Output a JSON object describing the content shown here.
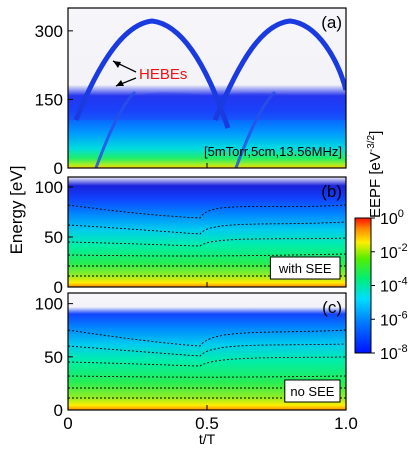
{
  "figure": {
    "ylabel": "Energy [eV]",
    "xlabel": "t/T",
    "colorbar_label": "EEPF [eV",
    "colorbar_label_exp": "-3/2",
    "colorbar_label_end": "]",
    "colorbar_ticks": [
      {
        "base": "10",
        "exp": "0"
      },
      {
        "base": "10",
        "exp": "-2"
      },
      {
        "base": "10",
        "exp": "-4"
      },
      {
        "base": "10",
        "exp": "-6"
      },
      {
        "base": "10",
        "exp": "-8"
      }
    ]
  },
  "chart_data": [
    {
      "panel": "(a)",
      "type": "heatmap",
      "x": {
        "label": "t/T",
        "range": [
          0,
          1
        ],
        "ticks": [
          "0",
          "0.5",
          "1.0"
        ]
      },
      "y": {
        "label": "Energy [eV]",
        "range": [
          0,
          350
        ],
        "ticks": [
          "0",
          "150",
          "300"
        ]
      },
      "colorscale": {
        "type": "log",
        "range": [
          1e-08,
          1
        ],
        "colors": [
          "#0022ff",
          "#00ccff",
          "#22ee55",
          "#ffee00",
          "#ff2200"
        ]
      },
      "annotations": [
        {
          "text": "HEBEs",
          "color": "#ee1111"
        }
      ],
      "condition_label": "[5mTorr,5cm,13.56MHz]",
      "beam_peaks": [
        {
          "t": 0.3,
          "energy": 328
        },
        {
          "t": 0.8,
          "energy": 328
        }
      ]
    },
    {
      "panel": "(b)",
      "type": "heatmap",
      "x": {
        "label": "t/T",
        "range": [
          0,
          1
        ],
        "ticks": [
          "0",
          "0.5",
          "1.0"
        ]
      },
      "y": {
        "label": "Energy [eV]",
        "range": [
          0,
          110
        ],
        "ticks": [
          "0",
          "50",
          "100"
        ]
      },
      "colorscale": {
        "type": "log",
        "range": [
          1e-08,
          1
        ]
      },
      "contour_lines": "dashed black",
      "legend_box": "with SEE"
    },
    {
      "panel": "(c)",
      "type": "heatmap",
      "x": {
        "label": "t/T",
        "range": [
          0,
          1
        ],
        "ticks": [
          "0",
          "0.5",
          "1.0"
        ]
      },
      "y": {
        "label": "Energy [eV]",
        "range": [
          0,
          110
        ],
        "ticks": [
          "0",
          "50",
          "100"
        ]
      },
      "colorscale": {
        "type": "log",
        "range": [
          1e-08,
          1
        ]
      },
      "contour_lines": "dashed black",
      "legend_box": "no SEE"
    }
  ]
}
